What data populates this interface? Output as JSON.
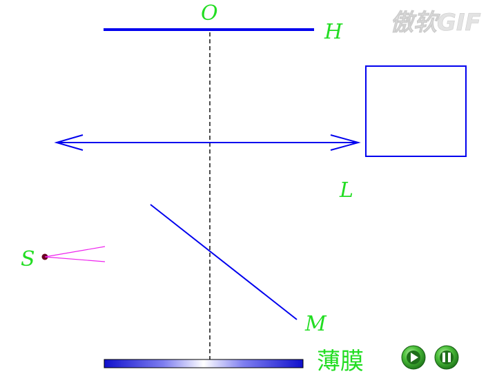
{
  "labels": {
    "O": "O",
    "H": "H",
    "L": "L",
    "S": "S",
    "M": "M",
    "film": "薄膜"
  },
  "watermark": "傲软GIF",
  "controls": {
    "play_icon": "play-icon",
    "pause_icon": "pause-icon"
  },
  "colors": {
    "optics_blue": "#0000ee",
    "label_green": "#22dd22",
    "ray_magenta": "#ee22ee",
    "source_dot": "#6a0020",
    "button_green": "#1e8c1e"
  }
}
